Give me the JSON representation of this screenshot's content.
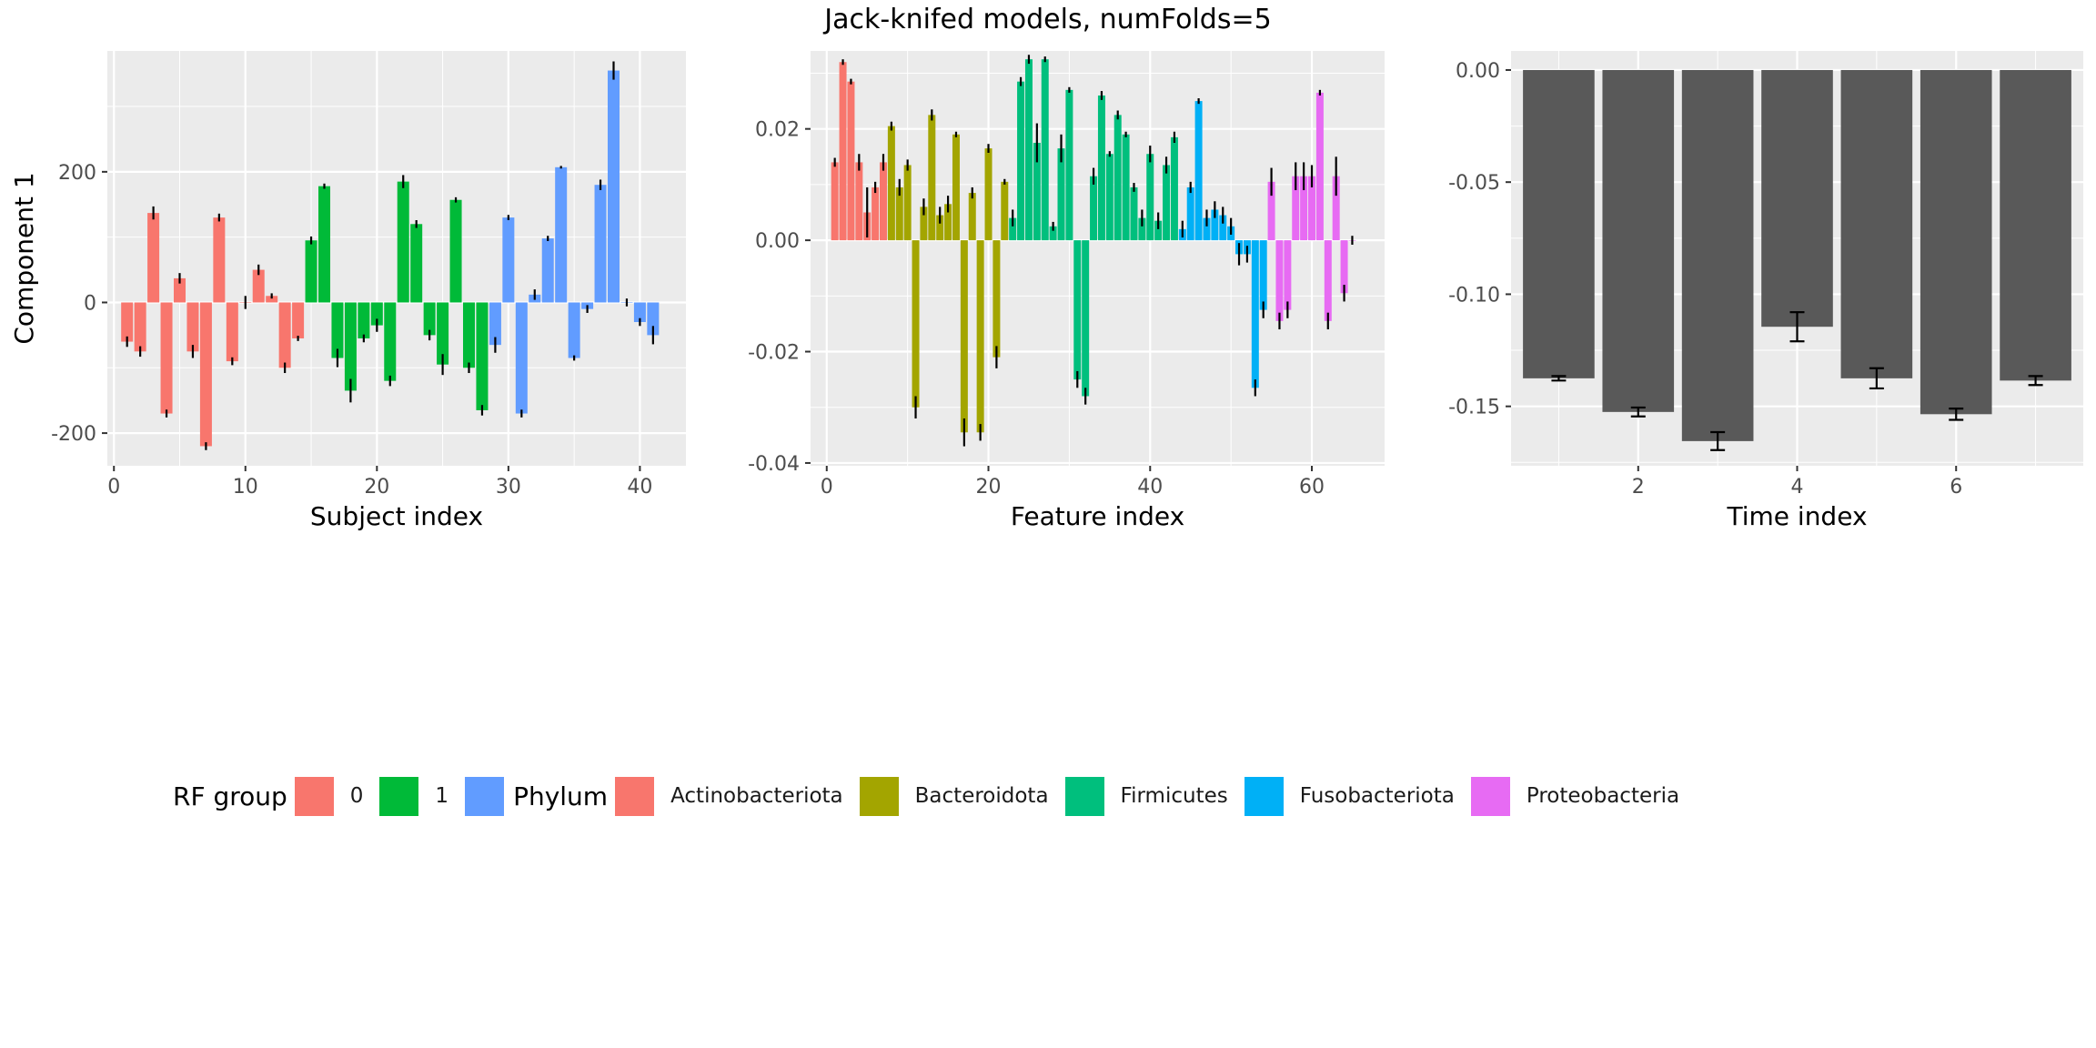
{
  "title": "Jack-knifed models, numFolds=5",
  "colors": {
    "panel_bg": "#EBEBEB",
    "grid": "#FFFFFF",
    "rf0": "#F8766D",
    "rf1": "#00BA38",
    "rf2": "#619CFF",
    "Actinobacteriota": "#F8766D",
    "Bacteroidota": "#A3A500",
    "Firmicutes": "#00BF7D",
    "Fusobacteriota": "#00B0F6",
    "Proteobacteria": "#E76BF3",
    "time_bar": "#595959"
  },
  "legend": {
    "rf_title": "RF group",
    "rf_items": [
      {
        "label": "0",
        "color": "#F8766D"
      },
      {
        "label": "1",
        "color": "#00BA38"
      },
      {
        "label": "",
        "color": "#619CFF"
      }
    ],
    "phylum_title": "Phylum",
    "phylum_items": [
      {
        "label": "Actinobacteriota",
        "color": "#F8766D"
      },
      {
        "label": "Bacteroidota",
        "color": "#A3A500"
      },
      {
        "label": "Firmicutes",
        "color": "#00BF7D"
      },
      {
        "label": "Fusobacteriota",
        "color": "#00B0F6"
      },
      {
        "label": "Proteobacteria",
        "color": "#E76BF3"
      }
    ]
  },
  "chart_data": [
    {
      "type": "bar",
      "xlabel": "Subject index",
      "ylabel": "Component 1",
      "xlim": [
        -0.5,
        43.5
      ],
      "ylim": [
        -250,
        385
      ],
      "xticks": [
        0,
        10,
        20,
        30,
        40
      ],
      "yticks": [
        -200,
        0,
        200
      ],
      "ytick_labels": [
        "-200",
        "0",
        "200"
      ],
      "x": [
        1,
        2,
        3,
        4,
        5,
        6,
        7,
        8,
        9,
        10,
        11,
        12,
        13,
        14,
        15,
        16,
        17,
        18,
        19,
        20,
        21,
        22,
        23,
        24,
        25,
        26,
        27,
        28,
        29,
        30,
        31,
        32,
        33,
        34,
        35,
        36,
        37,
        38,
        39,
        40,
        41
      ],
      "values": [
        -60,
        -75,
        137,
        -170,
        37,
        -75,
        -220,
        130,
        -90,
        0,
        50,
        10,
        -100,
        -55,
        95,
        178,
        -85,
        -135,
        -55,
        -35,
        -120,
        185,
        120,
        -50,
        -95,
        157,
        -100,
        -165,
        -65,
        130,
        -170,
        12,
        98,
        207,
        -85,
        -10,
        180,
        355,
        0,
        -30,
        -50
      ],
      "errors": [
        8,
        8,
        10,
        6,
        8,
        10,
        6,
        6,
        6,
        10,
        8,
        4,
        8,
        4,
        6,
        4,
        14,
        18,
        6,
        10,
        8,
        10,
        6,
        8,
        16,
        4,
        8,
        8,
        12,
        4,
        6,
        8,
        4,
        2,
        4,
        6,
        8,
        14,
        6,
        6,
        14
      ],
      "groups": [
        0,
        0,
        0,
        0,
        0,
        0,
        0,
        0,
        0,
        0,
        0,
        0,
        0,
        0,
        1,
        1,
        1,
        1,
        1,
        1,
        1,
        1,
        1,
        1,
        1,
        1,
        1,
        1,
        2,
        2,
        2,
        2,
        2,
        2,
        2,
        2,
        2,
        2,
        2,
        2,
        2
      ]
    },
    {
      "type": "bar",
      "xlabel": "Feature index",
      "ylabel": "",
      "xlim": [
        -2,
        69
      ],
      "ylim": [
        -0.0405,
        0.034
      ],
      "xticks": [
        0,
        20,
        40,
        60
      ],
      "yticks": [
        -0.04,
        -0.02,
        0.0,
        0.02
      ],
      "ytick_labels": [
        "-0.04",
        "-0.02",
        "0.00",
        "0.02"
      ],
      "x": [
        1,
        2,
        3,
        4,
        5,
        6,
        7,
        8,
        9,
        10,
        11,
        12,
        13,
        14,
        15,
        16,
        17,
        18,
        19,
        20,
        21,
        22,
        23,
        24,
        25,
        26,
        27,
        28,
        29,
        30,
        31,
        32,
        33,
        34,
        35,
        36,
        37,
        38,
        39,
        40,
        41,
        42,
        43,
        44,
        45,
        46,
        47,
        48,
        49,
        50,
        51,
        52,
        53,
        54,
        55,
        56,
        57,
        58,
        59,
        60,
        61,
        62,
        63,
        64,
        65
      ],
      "values": [
        0.014,
        0.032,
        0.0285,
        0.014,
        0.005,
        0.0095,
        0.014,
        0.0205,
        0.0095,
        0.0135,
        -0.03,
        0.006,
        0.0225,
        0.0045,
        0.0065,
        0.019,
        -0.0345,
        0.0085,
        -0.0345,
        0.0165,
        -0.021,
        0.0105,
        0.004,
        0.0285,
        0.0325,
        0.0175,
        0.0325,
        0.0025,
        0.0165,
        0.027,
        -0.025,
        -0.028,
        0.0115,
        0.026,
        0.0155,
        0.0225,
        0.019,
        0.0095,
        0.004,
        0.0155,
        0.0035,
        0.0135,
        0.0185,
        0.002,
        0.0095,
        0.025,
        0.004,
        0.0055,
        0.0045,
        0.0025,
        -0.0025,
        -0.0025,
        -0.0265,
        -0.0125,
        0.0105,
        -0.0145,
        -0.0125,
        0.0115,
        0.0115,
        0.0115,
        0.0265,
        -0.0145,
        0.0115,
        -0.0095,
        0.0
      ],
      "errors": [
        0.0008,
        0.0005,
        0.0005,
        0.0015,
        0.0045,
        0.001,
        0.0015,
        0.0008,
        0.0015,
        0.001,
        0.002,
        0.0015,
        0.001,
        0.0015,
        0.0015,
        0.0005,
        0.0025,
        0.001,
        0.0015,
        0.0008,
        0.002,
        0.0005,
        0.0015,
        0.0008,
        0.0008,
        0.0035,
        0.0005,
        0.0008,
        0.0025,
        0.0005,
        0.0015,
        0.0015,
        0.0015,
        0.0008,
        0.0005,
        0.0008,
        0.0005,
        0.0008,
        0.0015,
        0.0015,
        0.0015,
        0.0015,
        0.001,
        0.0015,
        0.001,
        0.0005,
        0.0015,
        0.0015,
        0.0015,
        0.0015,
        0.002,
        0.0015,
        0.0015,
        0.0015,
        0.0025,
        0.0015,
        0.0015,
        0.0025,
        0.0025,
        0.002,
        0.0005,
        0.0015,
        0.0035,
        0.0015,
        0.0008
      ],
      "phyla": [
        "Actinobacteriota",
        "Actinobacteriota",
        "Actinobacteriota",
        "Actinobacteriota",
        "Actinobacteriota",
        "Actinobacteriota",
        "Actinobacteriota",
        "Bacteroidota",
        "Bacteroidota",
        "Bacteroidota",
        "Bacteroidota",
        "Bacteroidota",
        "Bacteroidota",
        "Bacteroidota",
        "Bacteroidota",
        "Bacteroidota",
        "Bacteroidota",
        "Bacteroidota",
        "Bacteroidota",
        "Bacteroidota",
        "Bacteroidota",
        "Bacteroidota",
        "Firmicutes",
        "Firmicutes",
        "Firmicutes",
        "Firmicutes",
        "Firmicutes",
        "Firmicutes",
        "Firmicutes",
        "Firmicutes",
        "Firmicutes",
        "Firmicutes",
        "Firmicutes",
        "Firmicutes",
        "Firmicutes",
        "Firmicutes",
        "Firmicutes",
        "Firmicutes",
        "Firmicutes",
        "Firmicutes",
        "Firmicutes",
        "Firmicutes",
        "Firmicutes",
        "Fusobacteriota",
        "Fusobacteriota",
        "Fusobacteriota",
        "Fusobacteriota",
        "Fusobacteriota",
        "Fusobacteriota",
        "Fusobacteriota",
        "Fusobacteriota",
        "Fusobacteriota",
        "Fusobacteriota",
        "Fusobacteriota",
        "Proteobacteria",
        "Proteobacteria",
        "Proteobacteria",
        "Proteobacteria",
        "Proteobacteria",
        "Proteobacteria",
        "Proteobacteria",
        "Proteobacteria",
        "Proteobacteria",
        "Proteobacteria",
        "Proteobacteria"
      ]
    },
    {
      "type": "bar",
      "xlabel": "Time index",
      "ylabel": "",
      "xlim": [
        0.4,
        7.6
      ],
      "ylim": [
        -0.1765,
        0.0085
      ],
      "xticks": [
        2,
        4,
        6
      ],
      "yticks": [
        -0.15,
        -0.1,
        -0.05,
        0.0
      ],
      "ytick_labels": [
        "-0.15",
        "-0.10",
        "-0.05",
        "0.00"
      ],
      "x": [
        1,
        2,
        3,
        4,
        5,
        6,
        7
      ],
      "values": [
        -0.1375,
        -0.1525,
        -0.1655,
        -0.1145,
        -0.1375,
        -0.1535,
        -0.1385
      ],
      "errors": [
        0.001,
        0.002,
        0.004,
        0.0065,
        0.0045,
        0.0025,
        0.002
      ]
    }
  ]
}
